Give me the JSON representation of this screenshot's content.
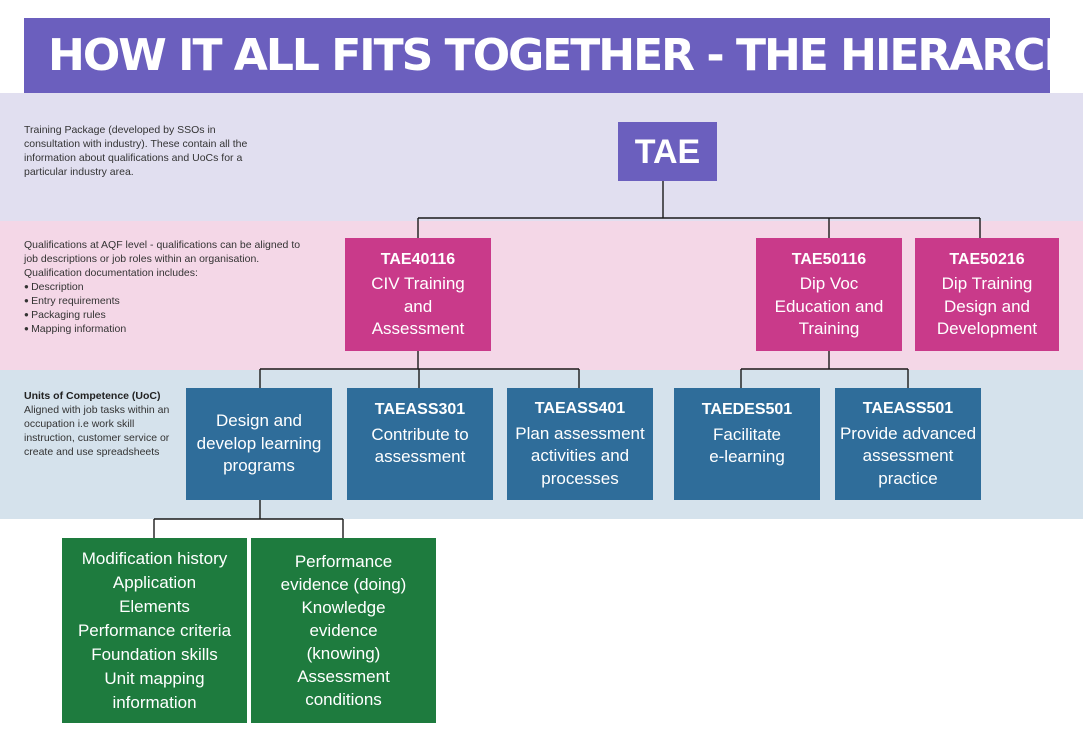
{
  "title": "HOW IT ALL FITS TOGETHER - THE HIERARCHY",
  "descriptions": {
    "training_package": "Training Package (developed by SSOs in consultation with industry).  These contain all the information about qualifications and UoCs for a particular industry area.",
    "qualifications": {
      "text": "Qualifications at AQF level - qualifications can be aligned to job descriptions or job roles within an organisation. Qualification documentation includes:",
      "items": [
        "Description",
        "Entry requirements",
        "Packaging rules",
        "Mapping information"
      ]
    },
    "units": {
      "heading": "Units of Competence (UoC)",
      "text": "Aligned with job tasks within an occupation i.e work skill instruction, customer service or create and use spreadsheets"
    }
  },
  "nodes": {
    "tae": {
      "label": "TAE"
    },
    "tae40116": {
      "code": "TAE40116",
      "lines": [
        "CIV Training",
        "and",
        "Assessment"
      ]
    },
    "tae50116": {
      "code": "TAE50116",
      "lines": [
        "Dip Voc",
        "Education and",
        "Training"
      ]
    },
    "tae50216": {
      "code": "TAE50216",
      "lines": [
        "Dip Training",
        "Design and",
        "Development"
      ]
    },
    "design_develop": {
      "lines": [
        "Design and",
        "develop learning",
        "programs"
      ]
    },
    "taeass301": {
      "code": "TAEASS301",
      "lines": [
        "Contribute to",
        "assessment"
      ]
    },
    "taeass401": {
      "code": "TAEASS401",
      "lines": [
        "Plan assessment",
        "activities and",
        "processes"
      ]
    },
    "taedes501": {
      "code": "TAEDES501",
      "lines": [
        "Facilitate",
        "e-learning"
      ]
    },
    "taeass501": {
      "code": "TAEASS501",
      "lines": [
        "Provide advanced",
        "assessment",
        "practice"
      ]
    },
    "unit_components": {
      "lines": [
        "Modification history",
        "Application",
        "Elements",
        "Performance criteria",
        "Foundation skills",
        "Unit mapping",
        "information"
      ]
    },
    "evidence": {
      "lines": [
        "Performance",
        "evidence (doing)",
        "Knowledge",
        "evidence",
        "(knowing)",
        "Assessment",
        "conditions"
      ]
    }
  },
  "colors": {
    "title_bar": "#6b5fbe",
    "training_package_band": "#e1dff0",
    "qualification_band": "#f4d7e7",
    "unit_band": "#d5e2ec",
    "package_box": "#6b5fbe",
    "qualification_box": "#c93a8a",
    "unit_box": "#2f6d9a",
    "component_box": "#1e7b3e"
  }
}
